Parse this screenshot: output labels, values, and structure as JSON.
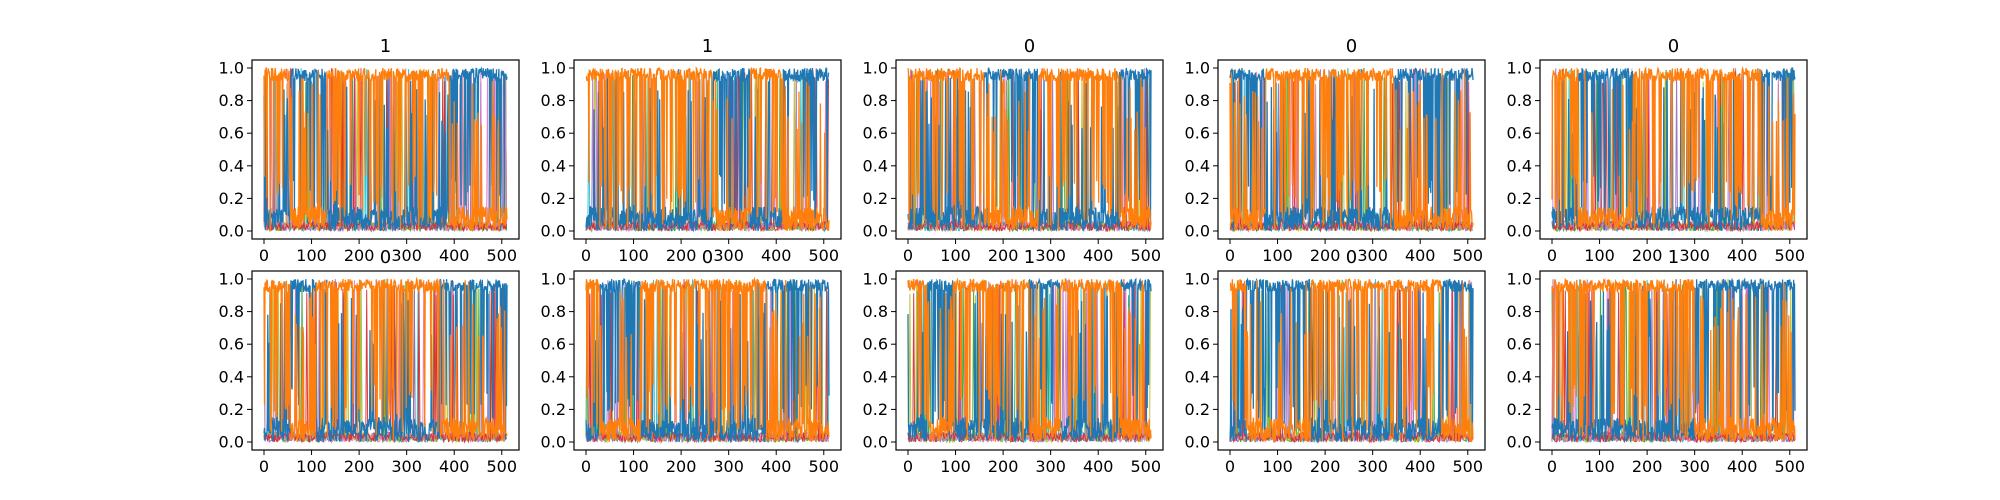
{
  "figure": {
    "rows": 2,
    "cols": 5,
    "palette": [
      "#1f77b4",
      "#ff7f0e",
      "#2ca02c",
      "#d62728",
      "#9467bd",
      "#8c564b",
      "#e377c2",
      "#7f7f7f",
      "#bcbd22",
      "#17becf"
    ]
  },
  "chart_data": [
    {
      "type": "line",
      "title": "1",
      "xlim": [
        0,
        511
      ],
      "ylim": [
        0,
        1
      ],
      "xticks": [
        0,
        100,
        200,
        300,
        400,
        500
      ],
      "yticks": [
        0.0,
        0.2,
        0.4,
        0.6,
        0.8,
        1.0
      ],
      "segments": [
        {
          "x": [
            0,
            55
          ],
          "dominant": "orange"
        },
        {
          "x": [
            55,
            130
          ],
          "dominant": "blue"
        },
        {
          "x": [
            130,
            390
          ],
          "dominant": "orange"
        },
        {
          "x": [
            390,
            511
          ],
          "dominant": "blue"
        }
      ],
      "series": [
        {
          "color": "#1f77b4"
        },
        {
          "color": "#ff7f0e"
        }
      ]
    },
    {
      "type": "line",
      "title": "1",
      "xlim": [
        0,
        511
      ],
      "ylim": [
        0,
        1
      ],
      "xticks": [
        0,
        100,
        200,
        300,
        400,
        500
      ],
      "yticks": [
        0.0,
        0.2,
        0.4,
        0.6,
        0.8,
        1.0
      ],
      "segments": [
        {
          "x": [
            0,
            265
          ],
          "dominant": "orange"
        },
        {
          "x": [
            265,
            345
          ],
          "dominant": "blue"
        },
        {
          "x": [
            345,
            415
          ],
          "dominant": "orange"
        },
        {
          "x": [
            415,
            511
          ],
          "dominant": "blue"
        }
      ],
      "series": [
        {
          "color": "#1f77b4"
        },
        {
          "color": "#ff7f0e"
        }
      ]
    },
    {
      "type": "line",
      "title": "0",
      "xlim": [
        0,
        511
      ],
      "ylim": [
        0,
        1
      ],
      "xticks": [
        0,
        100,
        200,
        300,
        400,
        500
      ],
      "yticks": [
        0.0,
        0.2,
        0.4,
        0.6,
        0.8,
        1.0
      ],
      "segments": [
        {
          "x": [
            0,
            160
          ],
          "dominant": "orange"
        },
        {
          "x": [
            160,
            275
          ],
          "dominant": "blue"
        },
        {
          "x": [
            275,
            445
          ],
          "dominant": "orange"
        },
        {
          "x": [
            445,
            511
          ],
          "dominant": "blue"
        }
      ],
      "series": [
        {
          "color": "#1f77b4"
        },
        {
          "color": "#ff7f0e"
        }
      ]
    },
    {
      "type": "line",
      "title": "0",
      "xlim": [
        0,
        511
      ],
      "ylim": [
        0,
        1
      ],
      "xticks": [
        0,
        100,
        200,
        300,
        400,
        500
      ],
      "yticks": [
        0.0,
        0.2,
        0.4,
        0.6,
        0.8,
        1.0
      ],
      "segments": [
        {
          "x": [
            0,
            75
          ],
          "dominant": "blue"
        },
        {
          "x": [
            75,
            345
          ],
          "dominant": "orange"
        },
        {
          "x": [
            345,
            511
          ],
          "dominant": "blue"
        }
      ],
      "series": [
        {
          "color": "#1f77b4"
        },
        {
          "color": "#ff7f0e"
        }
      ]
    },
    {
      "type": "line",
      "title": "0",
      "xlim": [
        0,
        511
      ],
      "ylim": [
        0,
        1
      ],
      "xticks": [
        0,
        100,
        200,
        300,
        400,
        500
      ],
      "yticks": [
        0.0,
        0.2,
        0.4,
        0.6,
        0.8,
        1.0
      ],
      "segments": [
        {
          "x": [
            0,
            55
          ],
          "dominant": "orange"
        },
        {
          "x": [
            55,
            170
          ],
          "dominant": "blue"
        },
        {
          "x": [
            170,
            440
          ],
          "dominant": "orange"
        },
        {
          "x": [
            440,
            511
          ],
          "dominant": "blue"
        }
      ],
      "series": [
        {
          "color": "#1f77b4"
        },
        {
          "color": "#ff7f0e"
        }
      ]
    },
    {
      "type": "line",
      "title": "0",
      "xlim": [
        0,
        511
      ],
      "ylim": [
        0,
        1
      ],
      "xticks": [
        0,
        100,
        200,
        300,
        400,
        500
      ],
      "yticks": [
        0.0,
        0.2,
        0.4,
        0.6,
        0.8,
        1.0
      ],
      "segments": [
        {
          "x": [
            0,
            55
          ],
          "dominant": "orange"
        },
        {
          "x": [
            55,
            110
          ],
          "dominant": "blue"
        },
        {
          "x": [
            110,
            370
          ],
          "dominant": "orange"
        },
        {
          "x": [
            370,
            511
          ],
          "dominant": "blue"
        }
      ],
      "series": [
        {
          "color": "#1f77b4"
        },
        {
          "color": "#ff7f0e"
        }
      ]
    },
    {
      "type": "line",
      "title": "0",
      "xlim": [
        0,
        511
      ],
      "ylim": [
        0,
        1
      ],
      "xticks": [
        0,
        100,
        200,
        300,
        400,
        500
      ],
      "yticks": [
        0.0,
        0.2,
        0.4,
        0.6,
        0.8,
        1.0
      ],
      "segments": [
        {
          "x": [
            0,
            30
          ],
          "dominant": "orange"
        },
        {
          "x": [
            30,
            115
          ],
          "dominant": "blue"
        },
        {
          "x": [
            115,
            380
          ],
          "dominant": "orange"
        },
        {
          "x": [
            380,
            511
          ],
          "dominant": "blue"
        }
      ],
      "series": [
        {
          "color": "#1f77b4"
        },
        {
          "color": "#ff7f0e"
        }
      ]
    },
    {
      "type": "line",
      "title": "1",
      "xlim": [
        0,
        511
      ],
      "ylim": [
        0,
        1
      ],
      "xticks": [
        0,
        100,
        200,
        300,
        400,
        500
      ],
      "yticks": [
        0.0,
        0.2,
        0.4,
        0.6,
        0.8,
        1.0
      ],
      "segments": [
        {
          "x": [
            0,
            40
          ],
          "dominant": "orange"
        },
        {
          "x": [
            40,
            95
          ],
          "dominant": "blue"
        },
        {
          "x": [
            95,
            255
          ],
          "dominant": "orange"
        },
        {
          "x": [
            255,
            320
          ],
          "dominant": "blue"
        },
        {
          "x": [
            320,
            450
          ],
          "dominant": "orange"
        },
        {
          "x": [
            450,
            511
          ],
          "dominant": "blue"
        }
      ],
      "series": [
        {
          "color": "#1f77b4"
        },
        {
          "color": "#ff7f0e"
        }
      ]
    },
    {
      "type": "line",
      "title": "0",
      "xlim": [
        0,
        511
      ],
      "ylim": [
        0,
        1
      ],
      "xticks": [
        0,
        100,
        200,
        300,
        400,
        500
      ],
      "yticks": [
        0.0,
        0.2,
        0.4,
        0.6,
        0.8,
        1.0
      ],
      "segments": [
        {
          "x": [
            0,
            35
          ],
          "dominant": "orange"
        },
        {
          "x": [
            35,
            170
          ],
          "dominant": "blue"
        },
        {
          "x": [
            170,
            445
          ],
          "dominant": "orange"
        },
        {
          "x": [
            445,
            511
          ],
          "dominant": "blue"
        }
      ],
      "series": [
        {
          "color": "#1f77b4"
        },
        {
          "color": "#ff7f0e"
        }
      ]
    },
    {
      "type": "line",
      "title": "1",
      "xlim": [
        0,
        511
      ],
      "ylim": [
        0,
        1
      ],
      "xticks": [
        0,
        100,
        200,
        300,
        400,
        500
      ],
      "yticks": [
        0.0,
        0.2,
        0.4,
        0.6,
        0.8,
        1.0
      ],
      "segments": [
        {
          "x": [
            0,
            300
          ],
          "dominant": "orange"
        },
        {
          "x": [
            300,
            511
          ],
          "dominant": "blue"
        }
      ],
      "series": [
        {
          "color": "#1f77b4"
        },
        {
          "color": "#ff7f0e"
        }
      ]
    }
  ]
}
